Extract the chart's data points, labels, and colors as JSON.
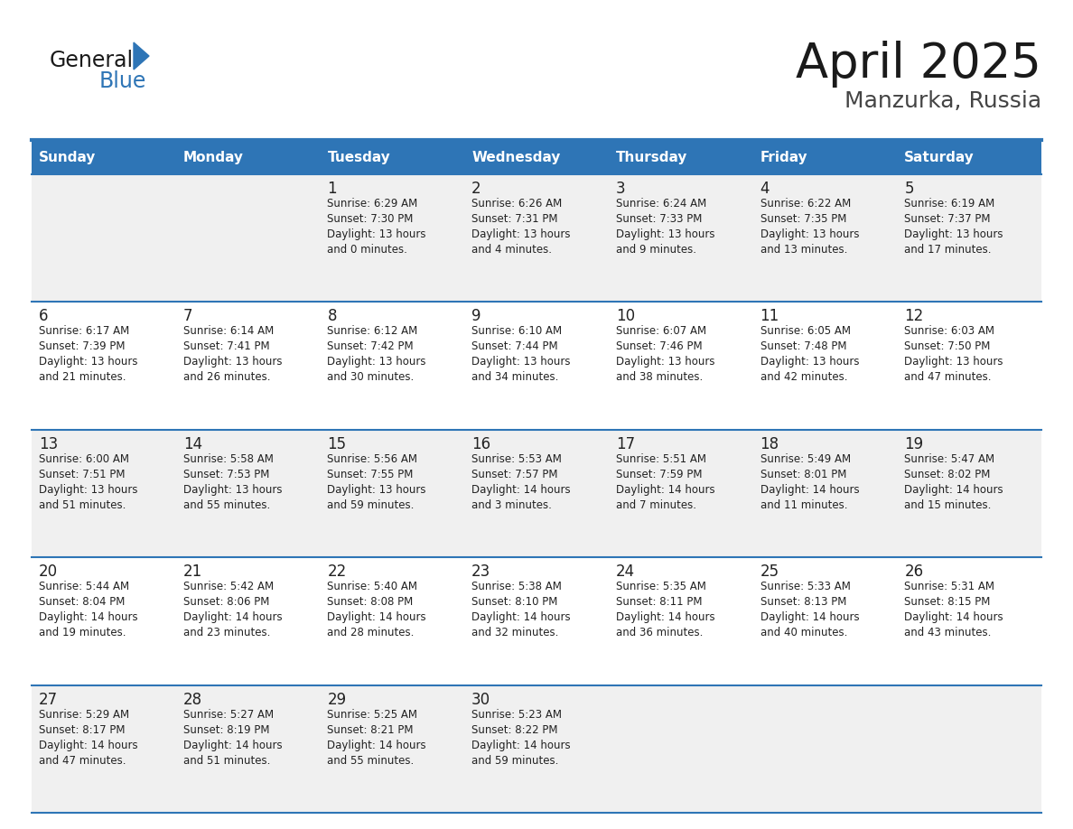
{
  "title": "April 2025",
  "subtitle": "Manzurka, Russia",
  "days_of_week": [
    "Sunday",
    "Monday",
    "Tuesday",
    "Wednesday",
    "Thursday",
    "Friday",
    "Saturday"
  ],
  "header_bg": "#2E75B6",
  "header_text": "#FFFFFF",
  "row_bg_odd": "#F0F0F0",
  "row_bg_even": "#FFFFFF",
  "cell_text_color": "#222222",
  "day_num_color": "#222222",
  "divider_color": "#2E75B6",
  "title_color": "#1a1a1a",
  "subtitle_color": "#444444",
  "weeks": [
    [
      {
        "day": null,
        "info": null
      },
      {
        "day": null,
        "info": null
      },
      {
        "day": 1,
        "info": "Sunrise: 6:29 AM\nSunset: 7:30 PM\nDaylight: 13 hours\nand 0 minutes."
      },
      {
        "day": 2,
        "info": "Sunrise: 6:26 AM\nSunset: 7:31 PM\nDaylight: 13 hours\nand 4 minutes."
      },
      {
        "day": 3,
        "info": "Sunrise: 6:24 AM\nSunset: 7:33 PM\nDaylight: 13 hours\nand 9 minutes."
      },
      {
        "day": 4,
        "info": "Sunrise: 6:22 AM\nSunset: 7:35 PM\nDaylight: 13 hours\nand 13 minutes."
      },
      {
        "day": 5,
        "info": "Sunrise: 6:19 AM\nSunset: 7:37 PM\nDaylight: 13 hours\nand 17 minutes."
      }
    ],
    [
      {
        "day": 6,
        "info": "Sunrise: 6:17 AM\nSunset: 7:39 PM\nDaylight: 13 hours\nand 21 minutes."
      },
      {
        "day": 7,
        "info": "Sunrise: 6:14 AM\nSunset: 7:41 PM\nDaylight: 13 hours\nand 26 minutes."
      },
      {
        "day": 8,
        "info": "Sunrise: 6:12 AM\nSunset: 7:42 PM\nDaylight: 13 hours\nand 30 minutes."
      },
      {
        "day": 9,
        "info": "Sunrise: 6:10 AM\nSunset: 7:44 PM\nDaylight: 13 hours\nand 34 minutes."
      },
      {
        "day": 10,
        "info": "Sunrise: 6:07 AM\nSunset: 7:46 PM\nDaylight: 13 hours\nand 38 minutes."
      },
      {
        "day": 11,
        "info": "Sunrise: 6:05 AM\nSunset: 7:48 PM\nDaylight: 13 hours\nand 42 minutes."
      },
      {
        "day": 12,
        "info": "Sunrise: 6:03 AM\nSunset: 7:50 PM\nDaylight: 13 hours\nand 47 minutes."
      }
    ],
    [
      {
        "day": 13,
        "info": "Sunrise: 6:00 AM\nSunset: 7:51 PM\nDaylight: 13 hours\nand 51 minutes."
      },
      {
        "day": 14,
        "info": "Sunrise: 5:58 AM\nSunset: 7:53 PM\nDaylight: 13 hours\nand 55 minutes."
      },
      {
        "day": 15,
        "info": "Sunrise: 5:56 AM\nSunset: 7:55 PM\nDaylight: 13 hours\nand 59 minutes."
      },
      {
        "day": 16,
        "info": "Sunrise: 5:53 AM\nSunset: 7:57 PM\nDaylight: 14 hours\nand 3 minutes."
      },
      {
        "day": 17,
        "info": "Sunrise: 5:51 AM\nSunset: 7:59 PM\nDaylight: 14 hours\nand 7 minutes."
      },
      {
        "day": 18,
        "info": "Sunrise: 5:49 AM\nSunset: 8:01 PM\nDaylight: 14 hours\nand 11 minutes."
      },
      {
        "day": 19,
        "info": "Sunrise: 5:47 AM\nSunset: 8:02 PM\nDaylight: 14 hours\nand 15 minutes."
      }
    ],
    [
      {
        "day": 20,
        "info": "Sunrise: 5:44 AM\nSunset: 8:04 PM\nDaylight: 14 hours\nand 19 minutes."
      },
      {
        "day": 21,
        "info": "Sunrise: 5:42 AM\nSunset: 8:06 PM\nDaylight: 14 hours\nand 23 minutes."
      },
      {
        "day": 22,
        "info": "Sunrise: 5:40 AM\nSunset: 8:08 PM\nDaylight: 14 hours\nand 28 minutes."
      },
      {
        "day": 23,
        "info": "Sunrise: 5:38 AM\nSunset: 8:10 PM\nDaylight: 14 hours\nand 32 minutes."
      },
      {
        "day": 24,
        "info": "Sunrise: 5:35 AM\nSunset: 8:11 PM\nDaylight: 14 hours\nand 36 minutes."
      },
      {
        "day": 25,
        "info": "Sunrise: 5:33 AM\nSunset: 8:13 PM\nDaylight: 14 hours\nand 40 minutes."
      },
      {
        "day": 26,
        "info": "Sunrise: 5:31 AM\nSunset: 8:15 PM\nDaylight: 14 hours\nand 43 minutes."
      }
    ],
    [
      {
        "day": 27,
        "info": "Sunrise: 5:29 AM\nSunset: 8:17 PM\nDaylight: 14 hours\nand 47 minutes."
      },
      {
        "day": 28,
        "info": "Sunrise: 5:27 AM\nSunset: 8:19 PM\nDaylight: 14 hours\nand 51 minutes."
      },
      {
        "day": 29,
        "info": "Sunrise: 5:25 AM\nSunset: 8:21 PM\nDaylight: 14 hours\nand 55 minutes."
      },
      {
        "day": 30,
        "info": "Sunrise: 5:23 AM\nSunset: 8:22 PM\nDaylight: 14 hours\nand 59 minutes."
      },
      {
        "day": null,
        "info": null
      },
      {
        "day": null,
        "info": null
      },
      {
        "day": null,
        "info": null
      }
    ]
  ]
}
